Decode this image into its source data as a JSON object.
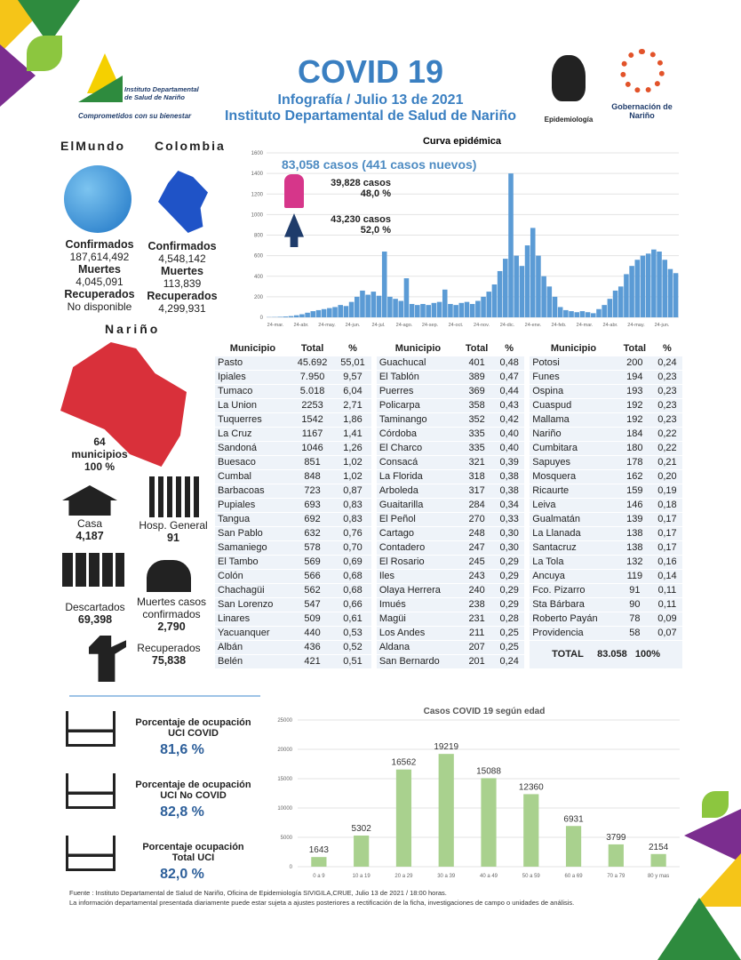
{
  "header": {
    "title": "COVID 19",
    "subtitle": "Infografía / Julio 13 de 2021",
    "institution": "Instituto Departamental de Salud de Nariño",
    "logo_left": {
      "name": "Instituto Departamental de Salud de Nariño",
      "slogan": "Comprometidos con su bienestar"
    },
    "logo_epi": "Epidemiología",
    "logo_gob": "Gobernación de Nariño"
  },
  "world": {
    "title": "ElMundo",
    "confirmed_label": "Confirmados",
    "confirmed": "187,614,492",
    "deaths_label": "Muertes",
    "deaths": "4,045,091",
    "recovered_label": "Recuperados",
    "recovered": "No disponible"
  },
  "colombia": {
    "title": "Colombia",
    "confirmed_label": "Confirmados",
    "confirmed": "4,548,142",
    "deaths_label": "Muertes",
    "deaths": "113,839",
    "recovered_label": "Recuperados",
    "recovered": "4,299,931"
  },
  "narino": {
    "title": "Nariño",
    "municipios": "64",
    "municipios_label": "municipios",
    "pct": "100 %",
    "casa_label": "Casa",
    "casa": "4,187",
    "hosp_label": "Hosp. General",
    "hosp": "91",
    "descartados_label": "Descartados",
    "descartados": "69,398",
    "muertes_label": "Muertes casos confirmados",
    "muertes": "2,790",
    "recuperados_label": "Recuperados",
    "recuperados": "75,838"
  },
  "sex": {
    "total": "83,058  casos (441 casos nuevos)",
    "men_cases": "39,828  casos",
    "men_pct": "48,0 %",
    "women_cases": "43,230  casos",
    "women_pct": "52,0 %",
    "men_color": "#d6368a",
    "women_color": "#1f3c6b"
  },
  "table": {
    "headers": [
      "Municipio",
      "Total",
      "%"
    ],
    "rows": [
      [
        [
          "Pasto",
          "45.692",
          "55,01"
        ],
        [
          "Guachucal",
          "401",
          "0,48"
        ],
        [
          "Potosi",
          "200",
          "0,24"
        ]
      ],
      [
        [
          "Ipiales",
          "7.950",
          "9,57"
        ],
        [
          "El Tablón",
          "389",
          "0,47"
        ],
        [
          "Funes",
          "194",
          "0,23"
        ]
      ],
      [
        [
          "Tumaco",
          "5.018",
          "6,04"
        ],
        [
          "Puerres",
          "369",
          "0,44"
        ],
        [
          "Ospina",
          "193",
          "0,23"
        ]
      ],
      [
        [
          "La Union",
          "2253",
          "2,71"
        ],
        [
          "Policarpa",
          "358",
          "0,43"
        ],
        [
          "Cuaspud",
          "192",
          "0,23"
        ]
      ],
      [
        [
          "Tuquerres",
          "1542",
          "1,86"
        ],
        [
          "Taminango",
          "352",
          "0,42"
        ],
        [
          "Mallama",
          "192",
          "0,23"
        ]
      ],
      [
        [
          "La Cruz",
          "1167",
          "1,41"
        ],
        [
          "Córdoba",
          "335",
          "0,40"
        ],
        [
          "Nariño",
          "184",
          "0,22"
        ]
      ],
      [
        [
          "Sandoná",
          "1046",
          "1,26"
        ],
        [
          "El Charco",
          "335",
          "0,40"
        ],
        [
          "Cumbitara",
          "180",
          "0,22"
        ]
      ],
      [
        [
          "Buesaco",
          "851",
          "1,02"
        ],
        [
          "Consacá",
          "321",
          "0,39"
        ],
        [
          "Sapuyes",
          "178",
          "0,21"
        ]
      ],
      [
        [
          "Cumbal",
          "848",
          "1,02"
        ],
        [
          "La Florida",
          "318",
          "0,38"
        ],
        [
          "Mosquera",
          "162",
          "0,20"
        ]
      ],
      [
        [
          "Barbacoas",
          "723",
          "0,87"
        ],
        [
          "Arboleda",
          "317",
          "0,38"
        ],
        [
          "Ricaurte",
          "159",
          "0,19"
        ]
      ],
      [
        [
          "Pupiales",
          "693",
          "0,83"
        ],
        [
          "Guaitarilla",
          "284",
          "0,34"
        ],
        [
          "Leiva",
          "146",
          "0,18"
        ]
      ],
      [
        [
          "Tangua",
          "692",
          "0,83"
        ],
        [
          "El Peñol",
          "270",
          "0,33"
        ],
        [
          "Gualmatán",
          "139",
          "0,17"
        ]
      ],
      [
        [
          "San Pablo",
          "632",
          "0,76"
        ],
        [
          "Cartago",
          "248",
          "0,30"
        ],
        [
          "La Llanada",
          "138",
          "0,17"
        ]
      ],
      [
        [
          "Samaniego",
          "578",
          "0,70"
        ],
        [
          "Contadero",
          "247",
          "0,30"
        ],
        [
          "Santacruz",
          "138",
          "0,17"
        ]
      ],
      [
        [
          "El Tambo",
          "569",
          "0,69"
        ],
        [
          "El Rosario",
          "245",
          "0,29"
        ],
        [
          "La Tola",
          "132",
          "0,16"
        ]
      ],
      [
        [
          "Colón",
          "566",
          "0,68"
        ],
        [
          "Iles",
          "243",
          "0,29"
        ],
        [
          "Ancuya",
          "119",
          "0,14"
        ]
      ],
      [
        [
          "Chachagüi",
          "562",
          "0,68"
        ],
        [
          "Olaya Herrera",
          "240",
          "0,29"
        ],
        [
          "Fco. Pizarro",
          "91",
          "0,11"
        ]
      ],
      [
        [
          "San Lorenzo",
          "547",
          "0,66"
        ],
        [
          "Imués",
          "238",
          "0,29"
        ],
        [
          "Sta Bárbara",
          "90",
          "0,11"
        ]
      ],
      [
        [
          "Linares",
          "509",
          "0,61"
        ],
        [
          "Magüi",
          "231",
          "0,28"
        ],
        [
          "Roberto Payán",
          "78",
          "0,09"
        ]
      ],
      [
        [
          "Yacuanquer",
          "440",
          "0,53"
        ],
        [
          "Los Andes",
          "211",
          "0,25"
        ],
        [
          "Providencia",
          "58",
          "0,07"
        ]
      ],
      [
        [
          "Albán",
          "436",
          "0,52"
        ],
        [
          "Aldana",
          "207",
          "0,25"
        ],
        [
          "",
          "",
          ""
        ]
      ],
      [
        [
          "Belén",
          "421",
          "0,51"
        ],
        [
          "San Bernardo",
          "201",
          "0,24"
        ],
        [
          "",
          "",
          ""
        ]
      ]
    ],
    "total_label": "TOTAL",
    "total": "83.058",
    "total_pct": "100%"
  },
  "uci": [
    {
      "label1": "Porcentaje de ocupación",
      "label2": "UCI COVID",
      "value": "81,6  %"
    },
    {
      "label1": "Porcentaje de ocupación",
      "label2": "UCI No COVID",
      "value": "82,8  %"
    },
    {
      "label1": "Porcentaje ocupación",
      "label2": "Total UCI",
      "value": "82,0  %"
    }
  ],
  "footer": {
    "line1": "Fuente : Instituto Departamental de Salud de Nariño, Oficina de Epidemiología SIVIGILA,CRUE,  Julio 13 de 2021 / 18:00  horas.",
    "line2": "La información departamental presentada diariamente puede estar sujeta a ajustes posteriores a  rectificación de la ficha, investigaciones de campo o unidades de análisis."
  },
  "chart_data": [
    {
      "type": "bar",
      "title": "Curva epidémica",
      "ylim": [
        0,
        1600
      ],
      "yticks": [
        0,
        200,
        400,
        600,
        800,
        1000,
        1200,
        1400,
        1600
      ],
      "xticks": [
        "24-mar.",
        "24-abr.",
        "24-may.",
        "24-jun.",
        "24-jul.",
        "24-ago.",
        "24-sep.",
        "24-oct.",
        "24-nov.",
        "24-dic.",
        "24-ene.",
        "24-feb.",
        "24-mar.",
        "24-abr.",
        "24-may.",
        "24-jun."
      ],
      "grid": true,
      "color": "#5b9bd5",
      "values": [
        2,
        3,
        5,
        8,
        12,
        20,
        30,
        45,
        60,
        70,
        80,
        90,
        100,
        120,
        110,
        150,
        200,
        260,
        220,
        250,
        210,
        640,
        200,
        180,
        160,
        380,
        130,
        120,
        130,
        120,
        140,
        150,
        270,
        130,
        120,
        140,
        150,
        130,
        160,
        200,
        250,
        320,
        450,
        570,
        1400,
        600,
        500,
        700,
        870,
        600,
        400,
        300,
        200,
        100,
        70,
        60,
        50,
        60,
        50,
        40,
        80,
        120,
        180,
        260,
        300,
        420,
        500,
        560,
        600,
        620,
        660,
        640,
        560,
        470,
        430
      ]
    },
    {
      "type": "bar",
      "title": "Casos COVID 19  según edad",
      "ylim": [
        0,
        25000
      ],
      "yticks": [
        0,
        5000,
        10000,
        15000,
        20000,
        25000
      ],
      "categories": [
        "0 a 9",
        "10 a 19",
        "20 a 29",
        "30 a 39",
        "40 a 49",
        "50 a 59",
        "60 a 69",
        "70 a 79",
        "80 y mas"
      ],
      "values": [
        1643,
        5302,
        16562,
        19219,
        15088,
        12360,
        6931,
        3799,
        2154
      ],
      "color": "#a9d18e",
      "grid": true
    }
  ]
}
